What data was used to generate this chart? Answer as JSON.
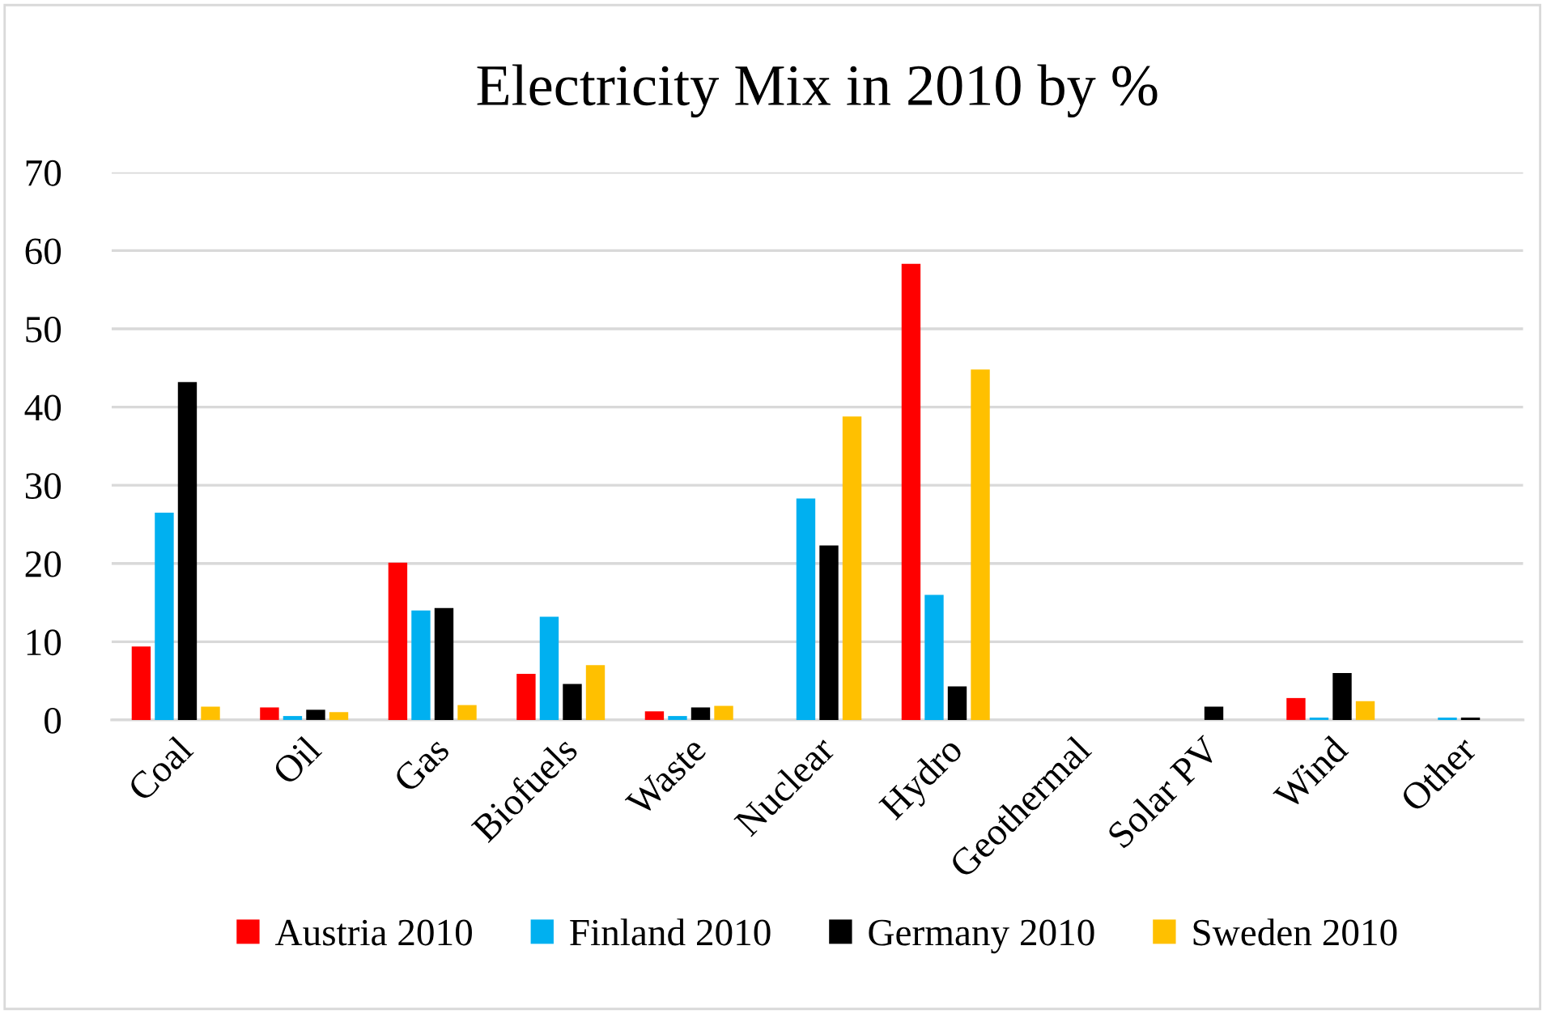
{
  "chart_data": {
    "type": "bar",
    "title": "Electricity Mix in 2010 by %",
    "categories": [
      "Coal",
      "Oil",
      "Gas",
      "Biofuels",
      "Waste",
      "Nuclear",
      "Hydro",
      "Geothermal",
      "Solar PV",
      "Wind",
      "Other"
    ],
    "series": [
      {
        "name": "Austria 2010",
        "color": "#ff0000",
        "values": [
          9.4,
          1.6,
          20.1,
          5.9,
          1.1,
          0,
          58.3,
          0,
          0,
          2.8,
          0
        ]
      },
      {
        "name": "Finland 2010",
        "color": "#00b0f0",
        "values": [
          26.5,
          0.5,
          14.0,
          13.2,
          0.5,
          28.3,
          16.0,
          0,
          0,
          0.3,
          0.3
        ]
      },
      {
        "name": "Germany 2010",
        "color": "#000000",
        "values": [
          43.2,
          1.3,
          14.3,
          4.6,
          1.6,
          22.3,
          4.3,
          0,
          1.7,
          6.0,
          0.3
        ]
      },
      {
        "name": "Sweden 2010",
        "color": "#ffc000",
        "values": [
          1.7,
          1.0,
          1.9,
          7.0,
          1.8,
          38.8,
          44.8,
          0,
          0,
          2.4,
          0
        ]
      }
    ],
    "ylim": [
      0,
      70
    ],
    "yticks": [
      0,
      10,
      20,
      30,
      40,
      50,
      60,
      70
    ],
    "grid": "y",
    "legend": "bottom"
  }
}
